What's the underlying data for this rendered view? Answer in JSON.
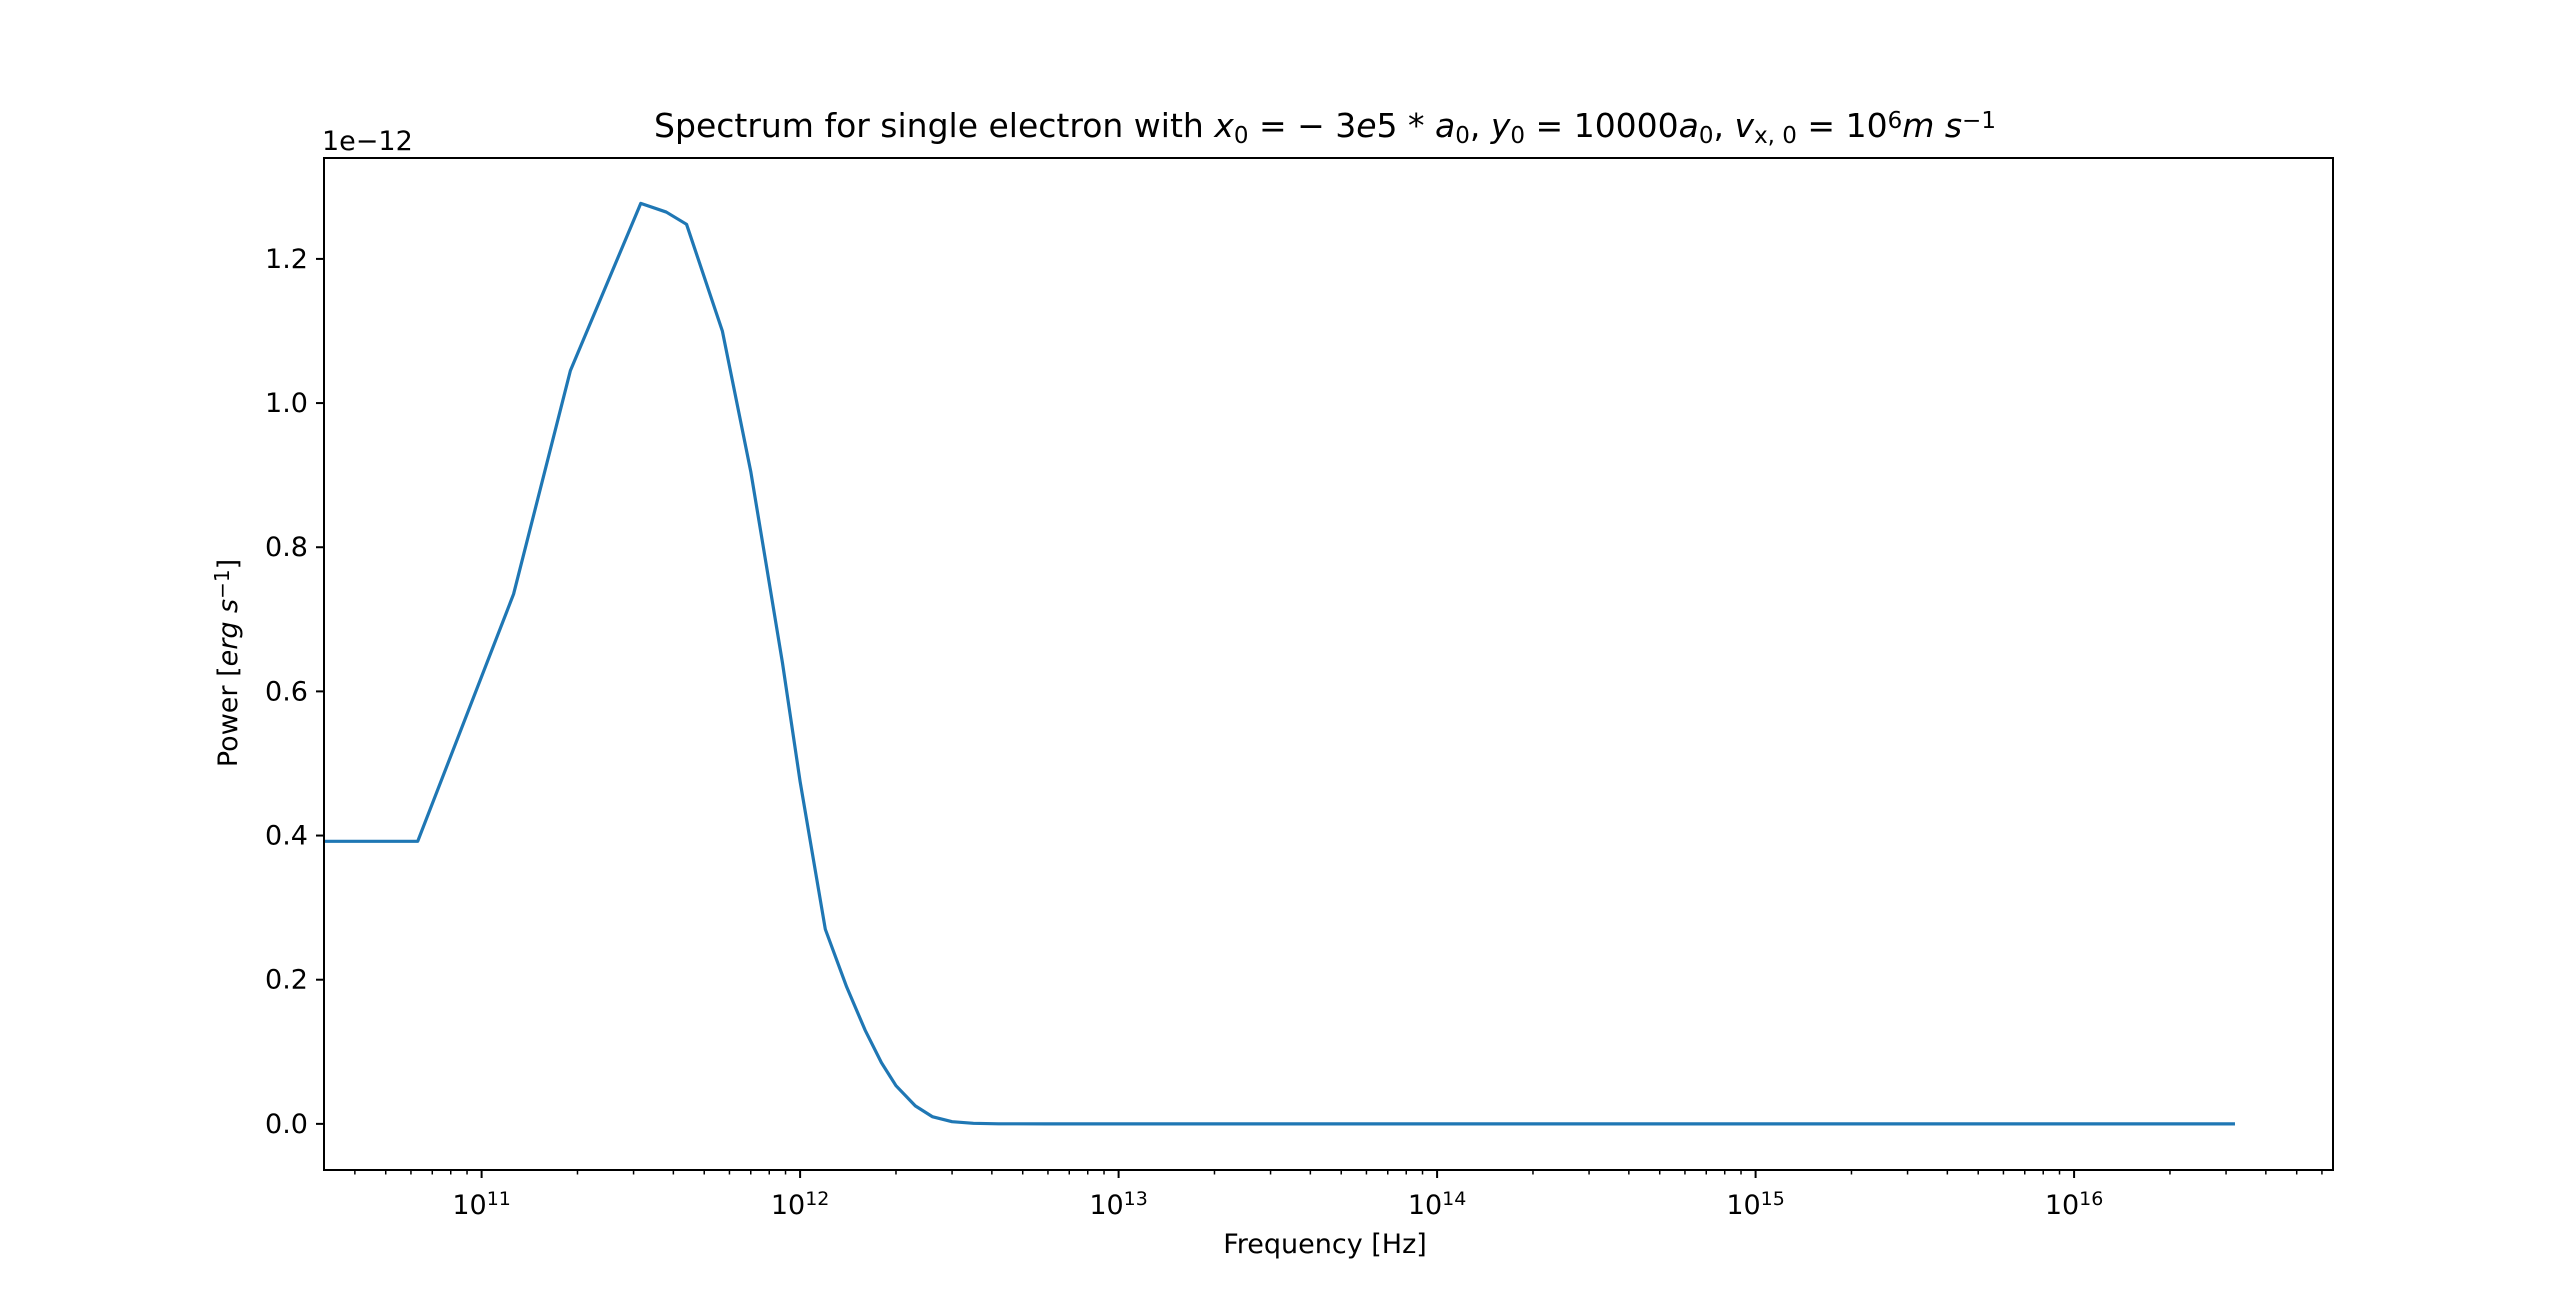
{
  "chart_data": {
    "type": "line",
    "title": {
      "prefix": "Spectrum for single electron with ",
      "math": [
        {
          "t": "x",
          "style": "italic"
        },
        {
          "t": "0",
          "style": "sub"
        },
        {
          "t": " = − 3",
          "style": "normal"
        },
        {
          "t": "e",
          "style": "italic"
        },
        {
          "t": "5 * ",
          "style": "normal"
        },
        {
          "t": "a",
          "style": "italic"
        },
        {
          "t": "0",
          "style": "sub"
        },
        {
          "t": ", ",
          "style": "normal"
        },
        {
          "t": "y",
          "style": "italic"
        },
        {
          "t": "0",
          "style": "sub"
        },
        {
          "t": " = 10000",
          "style": "normal"
        },
        {
          "t": "a",
          "style": "italic"
        },
        {
          "t": "0",
          "style": "sub"
        },
        {
          "t": ", ",
          "style": "normal"
        },
        {
          "t": "v",
          "style": "italic"
        },
        {
          "t": "x, 0",
          "style": "sub"
        },
        {
          "t": " = 10",
          "style": "normal"
        },
        {
          "t": "6",
          "style": "sup"
        },
        {
          "t": "m s",
          "style": "italic"
        },
        {
          "t": "−1",
          "style": "sup"
        }
      ]
    },
    "xlabel": "Frequency [Hz]",
    "ylabel": {
      "prefix": "Power [",
      "italic": "erg s",
      "sup": "−1",
      "suffix": "]"
    },
    "y_offset_text": "1e−12",
    "x_scale": "log",
    "xlim": [
      32000000000.0,
      6.5e+16
    ],
    "ylim": [
      -0.064,
      1.34
    ],
    "x_major_ticks": [
      {
        "value": 100000000000.0,
        "base": "10",
        "exp": "11"
      },
      {
        "value": 1000000000000.0,
        "base": "10",
        "exp": "12"
      },
      {
        "value": 10000000000000.0,
        "base": "10",
        "exp": "13"
      },
      {
        "value": 100000000000000.0,
        "base": "10",
        "exp": "14"
      },
      {
        "value": 1000000000000000.0,
        "base": "10",
        "exp": "15"
      },
      {
        "value": 1e+16,
        "base": "10",
        "exp": "16"
      }
    ],
    "y_ticks": [
      {
        "value": 0.0,
        "label": "0.0"
      },
      {
        "value": 0.2,
        "label": "0.2"
      },
      {
        "value": 0.4,
        "label": "0.4"
      },
      {
        "value": 0.6,
        "label": "0.6"
      },
      {
        "value": 0.8,
        "label": "0.8"
      },
      {
        "value": 1.0,
        "label": "1.0"
      },
      {
        "value": 1.2,
        "label": "1.2"
      }
    ],
    "grid": false,
    "series": [
      {
        "color": "#1f77b4",
        "x": [
          32000000000.0,
          63000000000.0,
          126000000000.0,
          190000000000.0,
          316000000000.0,
          380000000000.0,
          440000000000.0,
          570000000000.0,
          700000000000.0,
          780000000000.0,
          880000000000.0,
          1000000000000.0,
          1200000000000.0,
          1400000000000.0,
          1600000000000.0,
          1800000000000.0,
          2000000000000.0,
          2300000000000.0,
          2600000000000.0,
          3000000000000.0,
          3500000000000.0,
          4200000000000.0,
          6000000000000.0,
          10000000000000.0,
          100000000000000.0,
          1000000000000000.0,
          1e+16,
          3.2e+16
        ],
        "y": [
          0.392,
          0.392,
          0.735,
          1.045,
          1.277,
          1.265,
          1.248,
          1.1,
          0.905,
          0.78,
          0.64,
          0.475,
          0.27,
          0.19,
          0.13,
          0.085,
          0.053,
          0.025,
          0.01,
          0.003,
          0.0008,
          0.0001,
          0.0,
          0.0,
          0.0,
          0.0,
          0.0,
          0.0
        ]
      }
    ]
  }
}
